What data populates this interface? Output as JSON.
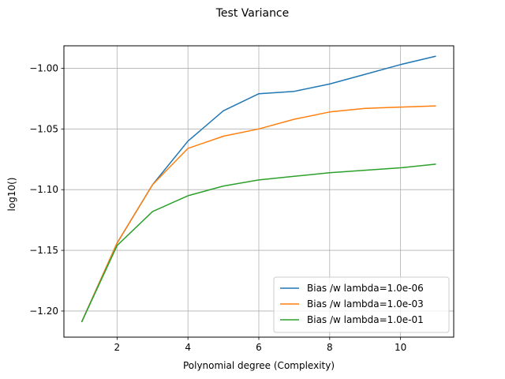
{
  "chart_data": {
    "type": "line",
    "title": "Test Variance",
    "xlabel": "Polynomial degree (Complexity)",
    "ylabel": "log10()",
    "xlim": [
      0.5,
      11.5
    ],
    "ylim": [
      -1.2215,
      -0.9815
    ],
    "xticks": [
      2,
      4,
      6,
      8,
      10
    ],
    "yticks": [
      -1.2,
      -1.15,
      -1.1,
      -1.05,
      -1.0
    ],
    "ytick_labels": [
      "−1.20",
      "−1.15",
      "−1.10",
      "−1.05",
      "−1.00"
    ],
    "grid": true,
    "legend_position": "lower-right",
    "x": [
      1,
      2,
      3,
      4,
      5,
      6,
      7,
      8,
      9,
      10,
      11
    ],
    "series": [
      {
        "name": "Bias /w lambda=1.0e-06",
        "color": "#1f77b4",
        "values": [
          -1.209,
          -1.144,
          -1.096,
          -1.06,
          -1.035,
          -1.021,
          -1.019,
          -1.013,
          -1.005,
          -0.997,
          -0.99
        ]
      },
      {
        "name": "Bias /w lambda=1.0e-03",
        "color": "#ff7f0e",
        "values": [
          -1.209,
          -1.144,
          -1.096,
          -1.066,
          -1.056,
          -1.05,
          -1.042,
          -1.036,
          -1.033,
          -1.032,
          -1.031
        ]
      },
      {
        "name": "Bias /w lambda=1.0e-01",
        "color": "#2ca02c",
        "values": [
          -1.209,
          -1.146,
          -1.118,
          -1.105,
          -1.097,
          -1.092,
          -1.089,
          -1.086,
          -1.084,
          -1.082,
          -1.079
        ]
      }
    ]
  }
}
